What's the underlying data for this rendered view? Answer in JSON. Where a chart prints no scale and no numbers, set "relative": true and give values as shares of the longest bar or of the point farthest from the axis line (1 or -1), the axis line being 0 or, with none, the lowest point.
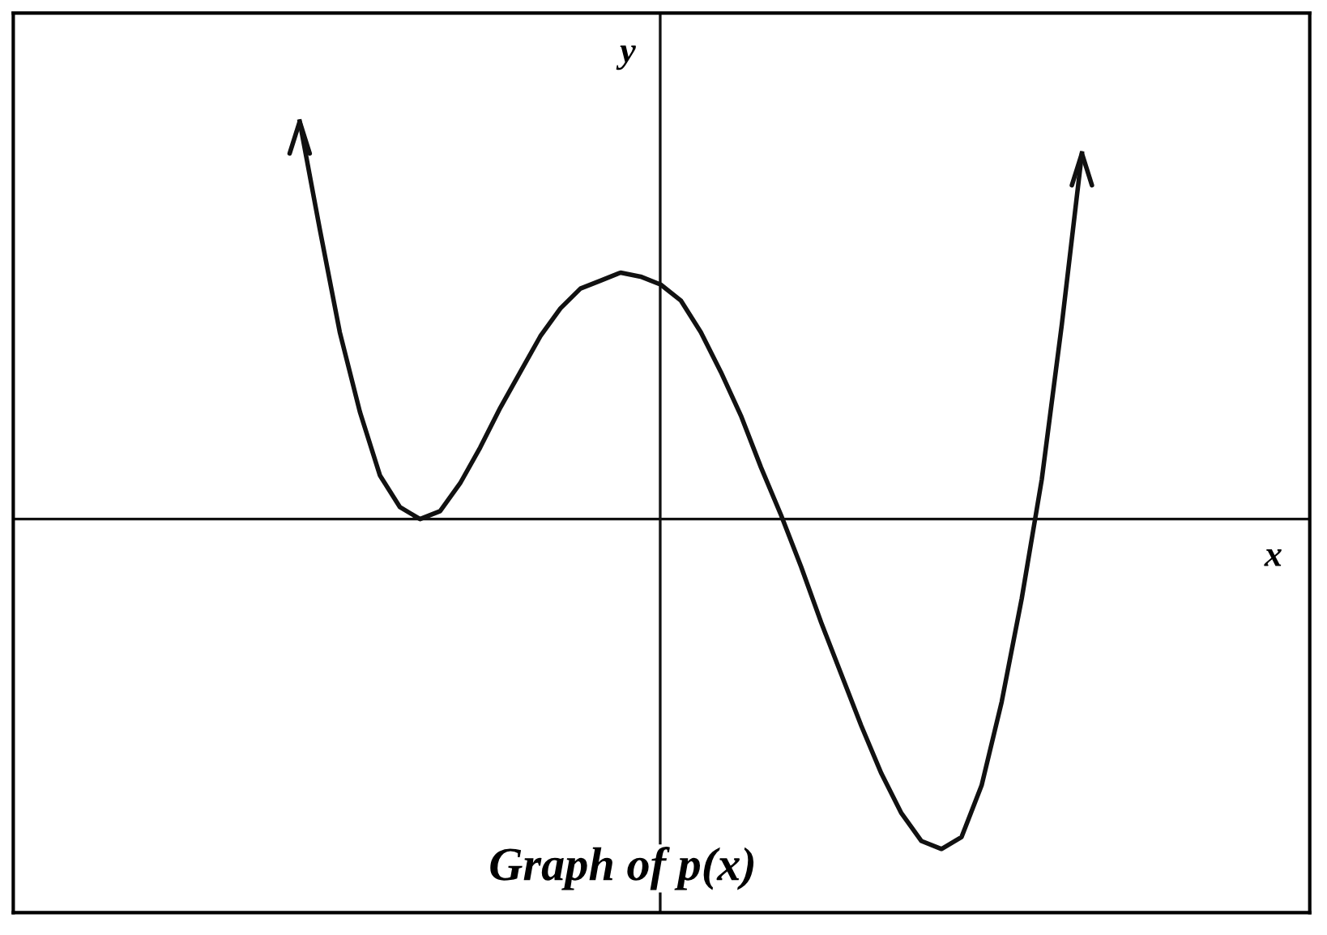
{
  "chart_data": {
    "type": "line",
    "title": "Graph of p(x)",
    "xlabel": "x",
    "ylabel": "y",
    "relative": true,
    "categories": [
      null,
      null,
      null,
      null,
      null,
      null,
      null,
      null,
      null,
      null,
      null,
      null,
      null,
      null,
      null,
      null,
      null,
      null,
      null,
      null,
      null,
      null,
      null,
      null,
      null,
      null,
      null,
      null,
      null,
      null,
      null,
      null,
      null,
      null,
      null,
      null,
      null,
      null,
      null,
      null
    ],
    "series": [
      {
        "color": "#111111",
        "values": [
          1.0,
          0.73,
          0.47,
          0.27,
          0.11,
          0.03,
          0,
          0.02,
          0.09,
          0.18,
          0.28,
          0.37,
          0.46,
          0.53,
          0.58,
          0.6,
          0.62,
          0.61,
          0.59,
          0.55,
          0.47,
          0.37,
          0.26,
          0.13,
          0.01,
          -0.12,
          -0.26,
          -0.39,
          -0.52,
          -0.64,
          -0.74,
          -0.81,
          -0.83,
          -0.8,
          -0.67,
          -0.46,
          -0.2,
          0.1,
          0.49,
          0.92
        ]
      }
    ],
    "legend": false,
    "line_style": "solid",
    "marker": "none"
  }
}
